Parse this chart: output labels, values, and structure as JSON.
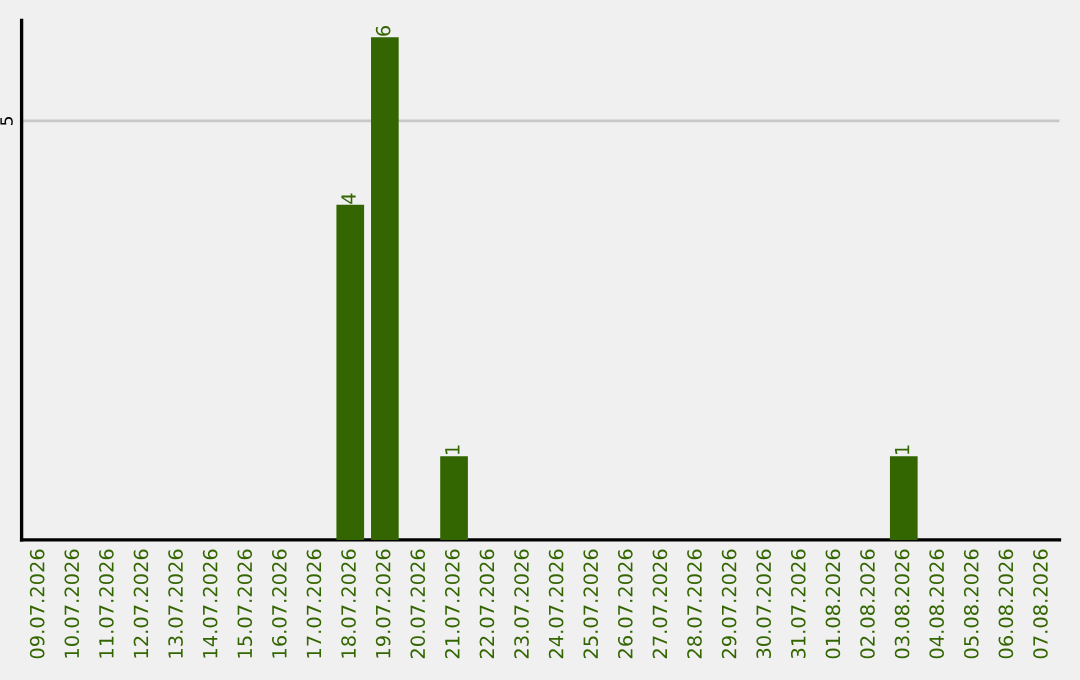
{
  "chart_data": {
    "type": "bar",
    "categories": [
      "09.07.2026",
      "10.07.2026",
      "11.07.2026",
      "12.07.2026",
      "13.07.2026",
      "14.07.2026",
      "15.07.2026",
      "16.07.2026",
      "17.07.2026",
      "18.07.2026",
      "19.07.2026",
      "20.07.2026",
      "21.07.2026",
      "22.07.2026",
      "23.07.2026",
      "24.07.2026",
      "25.07.2026",
      "26.07.2026",
      "27.07.2026",
      "28.07.2026",
      "29.07.2026",
      "30.07.2026",
      "31.07.2026",
      "01.08.2026",
      "02.08.2026",
      "03.08.2026",
      "04.08.2026",
      "05.08.2026",
      "06.08.2026",
      "07.08.2026"
    ],
    "values": [
      0,
      0,
      0,
      0,
      0,
      0,
      0,
      0,
      0,
      4,
      6,
      0,
      1,
      0,
      0,
      0,
      0,
      0,
      0,
      0,
      0,
      0,
      0,
      0,
      0,
      1,
      0,
      0,
      0,
      0
    ],
    "value_labels": [
      null,
      null,
      null,
      null,
      null,
      null,
      null,
      null,
      null,
      "4",
      "6",
      null,
      "1",
      null,
      null,
      null,
      null,
      null,
      null,
      null,
      null,
      null,
      null,
      null,
      null,
      "1",
      null,
      null,
      null,
      null
    ],
    "color": "#336600",
    "ylim": [
      0,
      6.2
    ],
    "yticks": [
      5
    ],
    "grid": "y"
  }
}
